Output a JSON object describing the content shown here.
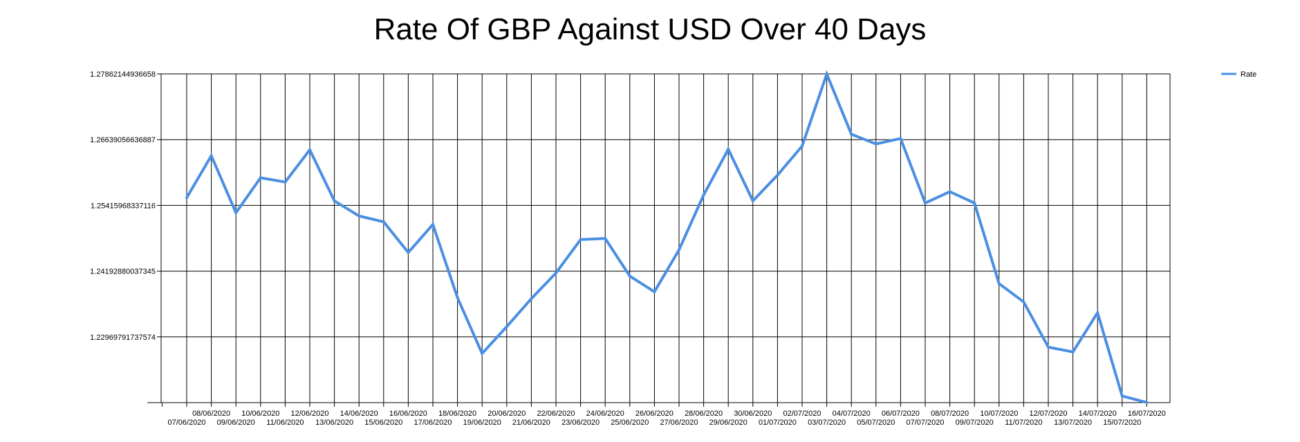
{
  "chart_data": {
    "type": "line",
    "title": "Rate Of GBP Against USD Over 40 Days",
    "xlabel": "",
    "ylabel": "",
    "x": [
      "07/06/2020",
      "08/06/2020",
      "09/06/2020",
      "10/06/2020",
      "11/06/2020",
      "12/06/2020",
      "13/06/2020",
      "14/06/2020",
      "15/06/2020",
      "16/06/2020",
      "17/06/2020",
      "18/06/2020",
      "19/06/2020",
      "20/06/2020",
      "21/06/2020",
      "22/06/2020",
      "23/06/2020",
      "24/06/2020",
      "25/06/2020",
      "26/06/2020",
      "27/06/2020",
      "28/06/2020",
      "29/06/2020",
      "30/06/2020",
      "01/07/2020",
      "02/07/2020",
      "03/07/2020",
      "04/07/2020",
      "05/07/2020",
      "06/07/2020",
      "07/07/2020",
      "08/07/2020",
      "09/07/2020",
      "10/07/2020",
      "11/07/2020",
      "12/07/2020",
      "13/07/2020",
      "14/07/2020",
      "15/07/2020",
      "16/07/2020"
    ],
    "y_ticks": [
      "1.22969791737574",
      "1.24192880037345",
      "1.25415968337116",
      "1.26639056636887",
      "1.27862144936658"
    ],
    "ylim": [
      1.21746703437803,
      1.27862144936658
    ],
    "grid": true,
    "legend_position": "top-right",
    "series": [
      {
        "name": "Rate",
        "color": "#4a8fe3",
        "values": [
          1.2556,
          1.2634,
          1.2528,
          1.2593,
          1.2585,
          1.2645,
          1.255,
          1.2522,
          1.2511,
          1.2454,
          1.2506,
          1.237,
          1.2266,
          1.2316,
          1.2368,
          1.2416,
          1.2478,
          1.248,
          1.241,
          1.2381,
          1.2459,
          1.2561,
          1.2646,
          1.255,
          1.2598,
          1.2652,
          1.2786,
          1.2674,
          1.2656,
          1.2666,
          1.2546,
          1.2567,
          1.2546,
          1.2396,
          1.2362,
          1.2278,
          1.2269,
          1.2342,
          1.2187,
          1.2175
        ]
      }
    ]
  }
}
